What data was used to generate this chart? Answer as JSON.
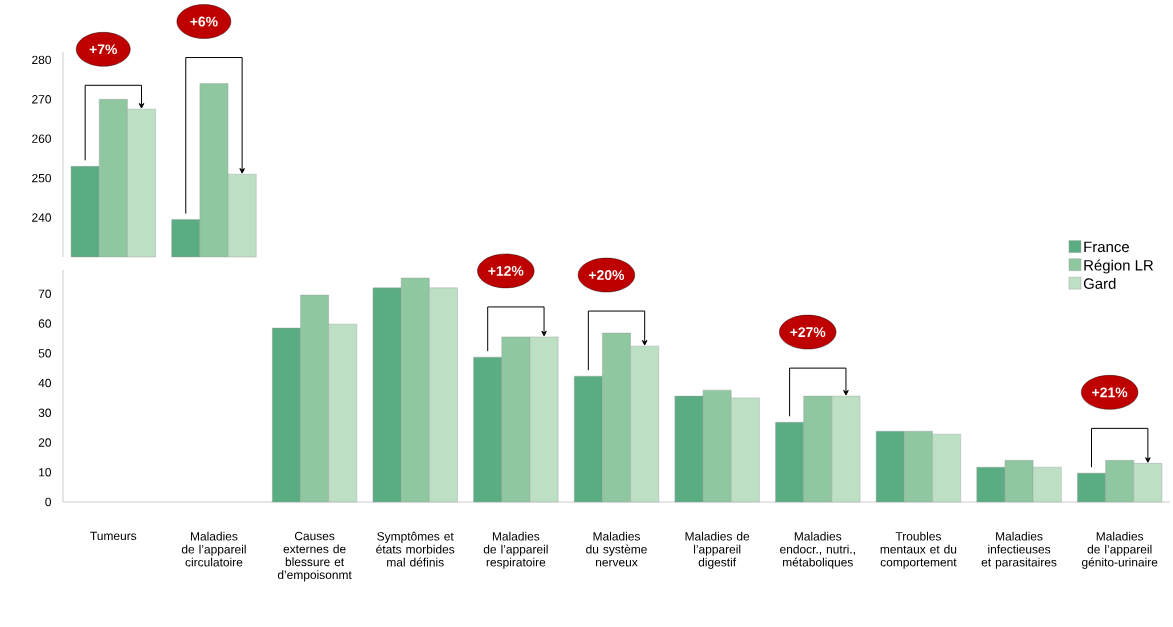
{
  "chart_data": [
    {
      "type": "bar",
      "categories": [
        null,
        null
      ],
      "series": [
        {
          "color": "#5aad82",
          "values": [
            253,
            239.5
          ]
        },
        {
          "color": "#8fc7a1",
          "values": [
            270,
            274
          ]
        },
        {
          "color": "#bde0c5",
          "values": [
            267.5,
            251
          ]
        }
      ],
      "ylim": [
        230,
        282
      ],
      "yticks": [
        240,
        250,
        260,
        270,
        280
      ],
      "tick_labels": "y",
      "annotations": [
        "+7%",
        "+6%"
      ]
    },
    {
      "type": "bar",
      "categories": [
        "Tumeurs",
        "Maladies de l’appareil circulatoire",
        "Causes externes de blessure et d’empoisonmt",
        "Symptômes et états morbides mal définis",
        "Maladies de l’appareil respiratoire",
        "Maladies du système nerveux",
        "Maladies de l’appareil digestif",
        "Maladies endocr., nutri., métaboliques",
        "Troubles mentaux et du comportement",
        "Maladies infectieuses et parasitaires",
        "Maladies de l’appareil génito-urinaire"
      ],
      "series": [
        {
          "name": "France",
          "color": "#5aad82",
          "values": [
            null,
            null,
            58.5,
            72,
            48.7,
            42.3,
            35.6,
            26.8,
            23.8,
            11.7,
            9.7
          ]
        },
        {
          "name": "Région LR",
          "color": "#8fc7a1",
          "values": [
            null,
            null,
            69.6,
            75.3,
            55.5,
            56.8,
            37.6,
            35.6,
            23.8,
            14,
            14
          ]
        },
        {
          "name": "Gard",
          "color": "#bde0c5",
          "values": [
            null,
            null,
            59.8,
            72,
            55.5,
            52.4,
            35,
            35.6,
            22.8,
            11.7,
            13
          ]
        }
      ],
      "ylim": [
        0,
        78
      ],
      "yticks": [
        0,
        10,
        20,
        30,
        40,
        50,
        60,
        70
      ],
      "legend": "top right",
      "annotations": [
        "+12%",
        "+20%",
        "+27%",
        "+21%"
      ]
    }
  ]
}
